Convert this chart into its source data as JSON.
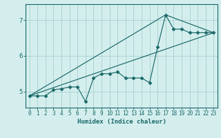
{
  "xlabel": "Humidex (Indice chaleur)",
  "bg_color": "#d4eeee",
  "grid_color": "#aed4d4",
  "line_color": "#1a6868",
  "xlim": [
    -0.5,
    23.5
  ],
  "ylim": [
    4.55,
    7.45
  ],
  "xticks": [
    0,
    1,
    2,
    3,
    4,
    5,
    6,
    7,
    8,
    9,
    10,
    11,
    12,
    13,
    14,
    15,
    16,
    17,
    18,
    19,
    20,
    21,
    22,
    23
  ],
  "yticks": [
    5,
    6,
    7
  ],
  "line1_x": [
    0,
    1,
    2,
    3,
    4,
    5,
    6,
    7,
    8,
    9,
    10,
    11,
    12,
    13,
    14,
    15,
    16,
    17,
    18,
    19,
    20,
    21,
    22,
    23
  ],
  "line1_y": [
    4.88,
    4.88,
    4.88,
    5.05,
    5.08,
    5.13,
    5.13,
    4.72,
    5.38,
    5.5,
    5.5,
    5.55,
    5.38,
    5.38,
    5.38,
    5.25,
    6.25,
    7.15,
    6.75,
    6.75,
    6.65,
    6.65,
    6.65,
    6.65
  ],
  "line2_x": [
    0,
    23
  ],
  "line2_y": [
    4.88,
    6.65
  ],
  "line3_x": [
    0,
    17,
    23
  ],
  "line3_y": [
    4.88,
    7.15,
    6.65
  ]
}
